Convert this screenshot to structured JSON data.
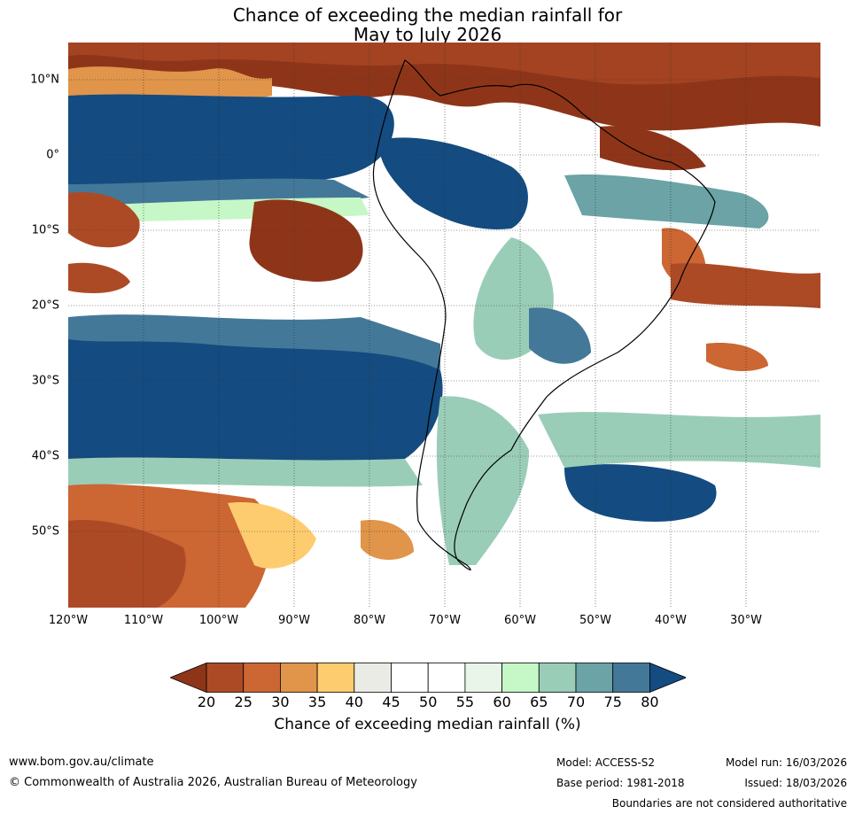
{
  "title": {
    "line1": "Chance of exceeding the median rainfall for",
    "line2": "May to July 2026"
  },
  "lat_labels": [
    "10°N",
    "0°",
    "10°S",
    "20°S",
    "30°S",
    "40°S",
    "50°S"
  ],
  "lon_labels": [
    "120°W",
    "110°W",
    "100°W",
    "90°W",
    "80°W",
    "70°W",
    "60°W",
    "50°W",
    "40°W",
    "30°W"
  ],
  "colorbar": {
    "ticks": [
      "20",
      "25",
      "30",
      "35",
      "40",
      "45",
      "50",
      "55",
      "60",
      "65",
      "70",
      "75",
      "80"
    ],
    "colors": [
      "#8e3519",
      "#ad4a26",
      "#cc6633",
      "#e0954a",
      "#fdcc6e",
      "#ebebe6",
      "#ffffff",
      "#ffffff",
      "#e8f5e8",
      "#c6f7c6",
      "#9acdb8",
      "#6ba3a6",
      "#447898",
      "#144b80"
    ],
    "label": "Chance of exceeding median rainfall (%)"
  },
  "footer": {
    "website": "www.bom.gov.au/climate",
    "copyright": "© Commonwealth of Australia 2026, Australian Bureau of Meteorology",
    "model": "Model: ACCESS-S2",
    "base_period": "Base period: 1981-2018",
    "model_run": "Model run: 16/03/2026",
    "issued": "Issued: 18/03/2026",
    "disclaimer": "Boundaries are not considered authoritative"
  }
}
